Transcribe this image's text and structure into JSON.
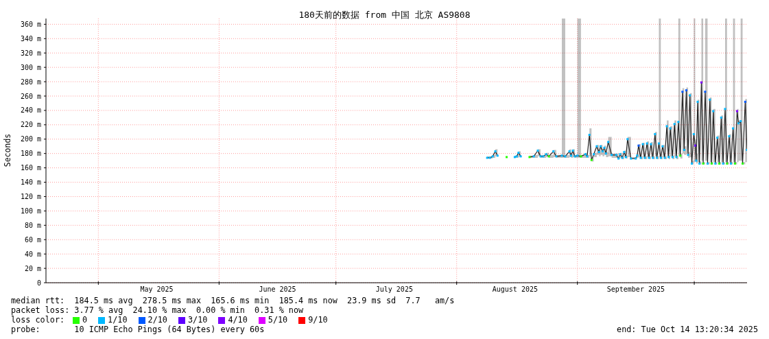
{
  "chart_data": {
    "type": "line",
    "title": "180天前的数据 from 中国 北京 AS9808",
    "ylabel": "Seconds",
    "legend_title": "loss color:",
    "annotations": [
      "median rtt:  184.5 ms avg  278.5 ms max  165.6 ms min  185.4 ms now  23.9 ms sd  7.7   am/s",
      "packet loss: 3.77 % avg  24.10 % max  0.00 % min  0.31 % now",
      "probe:       10 ICMP Echo Pings (64 Bytes) every 60s",
      "end: Tue Oct 14 13:20:34 2025"
    ],
    "xlim": [
      "2025-04-17T13:20",
      "2025-10-14T13:20"
    ],
    "xticks": [
      {
        "value": "2025-05-01",
        "label": null
      },
      {
        "value": "2025-05-16",
        "label": "May 2025"
      },
      {
        "value": "2025-06-01",
        "label": null
      },
      {
        "value": "2025-06-16",
        "label": "June 2025"
      },
      {
        "value": "2025-07-01",
        "label": null
      },
      {
        "value": "2025-07-16",
        "label": "July 2025"
      },
      {
        "value": "2025-08-01",
        "label": null
      },
      {
        "value": "2025-08-16",
        "label": "August 2025"
      },
      {
        "value": "2025-09-01",
        "label": null
      },
      {
        "value": "2025-09-16",
        "label": "September 2025"
      },
      {
        "value": "2025-10-01",
        "label": null
      }
    ],
    "ylim": [
      0,
      368
    ],
    "yticks": [
      0,
      {
        "value": 20,
        "label": "20 m"
      },
      {
        "value": 40,
        "label": "40 m"
      },
      {
        "value": 60,
        "label": "60 m"
      },
      {
        "value": 80,
        "label": "80 m"
      },
      {
        "value": 100,
        "label": "100 m"
      },
      {
        "value": 120,
        "label": "120 m"
      },
      {
        "value": 140,
        "label": "140 m"
      },
      {
        "value": 160,
        "label": "160 m"
      },
      {
        "value": 180,
        "label": "180 m"
      },
      {
        "value": 200,
        "label": "200 m"
      },
      {
        "value": 220,
        "label": "220 m"
      },
      {
        "value": 240,
        "label": "240 m"
      },
      {
        "value": 260,
        "label": "260 m"
      },
      {
        "value": 280,
        "label": "280 m"
      },
      {
        "value": 300,
        "label": "300 m"
      },
      {
        "value": 320,
        "label": "320 m"
      },
      {
        "value": 340,
        "label": "340 m"
      },
      {
        "value": 360,
        "label": "360 m"
      }
    ],
    "grid": true,
    "legend": "bottom",
    "marker": "square",
    "series": [
      {
        "color": "#222222",
        "marker": "none",
        "x": [
          "2025-08-08T20:00",
          "2025-08-09T13:00",
          "2025-08-10T06:00",
          "2025-08-10T22:00",
          "2025-08-11T12:00",
          "2025-08-12T12:00",
          "2025-08-15T22:00",
          "2025-08-16T10:00",
          "2025-08-16T21:00",
          "2025-08-17T11:00",
          "2025-08-18T12:00",
          "2025-08-19T17:00",
          "2025-08-20T19:00",
          "2025-08-21T20:00",
          "2025-08-22T13:00",
          "2025-08-23T06:00",
          "2025-08-23T23:00",
          "2025-08-24T16:00",
          "2025-08-25T20:00",
          "2025-08-26T14:00",
          "2025-08-28T00:00",
          "2025-08-28T21:00",
          "2025-08-29T23:00",
          "2025-08-30T09:00",
          "2025-08-30T20:00",
          "2025-08-31T08:00",
          "2025-09-01T00:00",
          "2025-09-01T22:00",
          "2025-09-03T01:00",
          "2025-09-03T12:00",
          "2025-09-04T02:00",
          "2025-09-04T15:00",
          "2025-09-05T05:00",
          "2025-09-05T23:00",
          "2025-09-06T13:00",
          "2025-09-06T23:00",
          "2025-09-07T11:00",
          "2025-09-07T22:00",
          "2025-09-08T08:00",
          "2025-09-08T22:00",
          "2025-09-09T19:00",
          "2025-09-10T23:00",
          "2025-09-11T13:00",
          "2025-09-11T23:00",
          "2025-09-12T12:00",
          "2025-09-13T00:00",
          "2025-09-13T11:00",
          "2025-09-13T21:00",
          "2025-09-14T18:00",
          "2025-09-15T23:00",
          "2025-09-16T08:00",
          "2025-09-16T17:00",
          "2025-09-17T06:00",
          "2025-09-17T19:00",
          "2025-09-18T07:00",
          "2025-09-18T21:00",
          "2025-09-19T09:00",
          "2025-09-19T21:00",
          "2025-09-20T09:00",
          "2025-09-20T22:00",
          "2025-09-21T10:00",
          "2025-09-21T22:00",
          "2025-09-22T10:00",
          "2025-09-22T21:00",
          "2025-09-23T10:00",
          "2025-09-23T23:00",
          "2025-09-24T10:00",
          "2025-09-24T20:00",
          "2025-09-25T10:00",
          "2025-09-25T22:00",
          "2025-09-26T10:00",
          "2025-09-26T22:00",
          "2025-09-27T10:00",
          "2025-09-27T23:00",
          "2025-09-28T10:00",
          "2025-09-28T23:00",
          "2025-09-29T10:00",
          "2025-09-29T21:00",
          "2025-09-30T09:00",
          "2025-09-30T21:00",
          "2025-10-01T06:00",
          "2025-10-01T12:00",
          "2025-10-01T21:00",
          "2025-10-02T08:00",
          "2025-10-02T20:00",
          "2025-10-03T07:00",
          "2025-10-03T19:00",
          "2025-10-04T10:00",
          "2025-10-05T00:00",
          "2025-10-05T11:00",
          "2025-10-05T21:00",
          "2025-10-06T10:00",
          "2025-10-06T22:00",
          "2025-10-07T10:00",
          "2025-10-07T22:00",
          "2025-10-08T10:00",
          "2025-10-08T22:00",
          "2025-10-09T10:00",
          "2025-10-09T23:00",
          "2025-10-10T10:00",
          "2025-10-10T23:00",
          "2025-10-11T11:00",
          "2025-10-12T00:00",
          "2025-10-12T09:00",
          "2025-10-12T22:00",
          "2025-10-13T10:00",
          "2025-10-14T02:00",
          "2025-10-14T13:00"
        ],
        "values": [
          174,
          174,
          176,
          183,
          177,
          null,
          175,
          176,
          181,
          176,
          null,
          175,
          176,
          184,
          176,
          176,
          179,
          176,
          183,
          176,
          177,
          176,
          183,
          177,
          184,
          176,
          177,
          176,
          179,
          176,
          206,
          171,
          179,
          190,
          182,
          190,
          183,
          188,
          180,
          196,
          178,
          178,
          173,
          179,
          174,
          182,
          175,
          200,
          173,
          173,
          177,
          191,
          174,
          193,
          174,
          194,
          174,
          193,
          174,
          207,
          174,
          194,
          174,
          190,
          174,
          218,
          175,
          215,
          175,
          221,
          175,
          224,
          177,
          266,
          185,
          268,
          178,
          261,
          166,
          207,
          191,
          170,
          252,
          166,
          279,
          166,
          266,
          166,
          255,
          166,
          239,
          166,
          202,
          166,
          230,
          166,
          242,
          166,
          204,
          166,
          215,
          166,
          239,
          222,
          225,
          166,
          252,
          185
        ],
        "lower": [
          173,
          173,
          174,
          176,
          175,
          null,
          174,
          174,
          175,
          174,
          null,
          174,
          174,
          176,
          174,
          174,
          175,
          174,
          175,
          174,
          174,
          174,
          175,
          174,
          175,
          174,
          174,
          174,
          174,
          174,
          176,
          169,
          175,
          178,
          176,
          178,
          176,
          178,
          175,
          176,
          174,
          174,
          172,
          174,
          172,
          175,
          173,
          175,
          172,
          172,
          174,
          175,
          172,
          175,
          172,
          175,
          172,
          175,
          172,
          176,
          172,
          175,
          172,
          175,
          172,
          176,
          172,
          176,
          172,
          176,
          172,
          177,
          173,
          180,
          178,
          180,
          174,
          175,
          165,
          168,
          170,
          166,
          168,
          165,
          170,
          165,
          170,
          165,
          168,
          165,
          168,
          165,
          168,
          165,
          168,
          165,
          168,
          165,
          168,
          165,
          168,
          165,
          168,
          170,
          170,
          165,
          168,
          175
        ],
        "upper": [
          176,
          176,
          178,
          186,
          184,
          null,
          177,
          178,
          183,
          178,
          null,
          177,
          178,
          186,
          178,
          178,
          181,
          178,
          185,
          178,
          368,
          178,
          186,
          179,
          186,
          178,
          368,
          178,
          181,
          178,
          215,
          175,
          181,
          192,
          184,
          192,
          185,
          191,
          182,
          203,
          180,
          180,
          175,
          181,
          176,
          184,
          177,
          203,
          175,
          175,
          179,
          193,
          176,
          195,
          176,
          197,
          176,
          196,
          176,
          210,
          176,
          368,
          176,
          192,
          176,
          226,
          177,
          218,
          177,
          226,
          177,
          368,
          180,
          271,
          190,
          272,
          182,
          264,
          170,
          368,
          200,
          180,
          255,
          169,
          368,
          168,
          368,
          168,
          258,
          168,
          242,
          168,
          205,
          168,
          233,
          168,
          368,
          168,
          207,
          168,
          368,
          168,
          242,
          226,
          368,
          168,
          256,
          190
        ]
      },
      {
        "name": "0",
        "type": "scatter",
        "color": "#26ff00",
        "x": [
          "2025-08-13T20:00",
          "2025-08-19T17:00",
          "2025-08-24T16:00",
          "2025-09-01T22:00",
          "2025-09-04T15:00",
          "2025-09-27T10:00",
          "2025-10-03T07:00",
          "2025-10-05T11:00",
          "2025-10-07T10:00",
          "2025-10-09T10:00",
          "2025-10-11T11:00",
          "2025-10-13T10:00"
        ],
        "values": [
          175,
          175,
          176,
          176,
          171,
          177,
          166,
          166,
          166,
          166,
          166,
          166
        ]
      },
      {
        "name": "1/10",
        "type": "scatter",
        "color": "#00b8ff",
        "x": [
          "2025-08-08T20:00",
          "2025-08-09T13:00",
          "2025-08-10T06:00",
          "2025-08-10T22:00",
          "2025-08-11T12:00",
          "2025-08-15T22:00",
          "2025-08-16T10:00",
          "2025-08-16T21:00",
          "2025-08-17T11:00",
          "2025-08-20T19:00",
          "2025-08-21T20:00",
          "2025-08-22T13:00",
          "2025-08-23T06:00",
          "2025-08-23T23:00",
          "2025-08-25T20:00",
          "2025-08-26T14:00",
          "2025-08-28T00:00",
          "2025-08-28T21:00",
          "2025-08-29T23:00",
          "2025-08-30T09:00",
          "2025-08-30T20:00",
          "2025-08-31T08:00",
          "2025-09-01T00:00",
          "2025-09-03T01:00",
          "2025-09-03T12:00",
          "2025-09-04T02:00",
          "2025-09-05T05:00",
          "2025-09-05T23:00",
          "2025-09-06T13:00",
          "2025-09-06T23:00",
          "2025-09-07T11:00",
          "2025-09-07T22:00",
          "2025-09-08T08:00",
          "2025-09-08T22:00",
          "2025-09-09T19:00",
          "2025-09-10T23:00",
          "2025-09-11T13:00",
          "2025-09-11T23:00",
          "2025-09-12T12:00",
          "2025-09-13T00:00",
          "2025-09-13T11:00",
          "2025-09-13T21:00",
          "2025-09-14T18:00",
          "2025-09-15T23:00",
          "2025-09-16T08:00",
          "2025-09-17T06:00",
          "2025-09-17T19:00",
          "2025-09-18T07:00",
          "2025-09-18T21:00",
          "2025-09-19T09:00",
          "2025-09-19T21:00",
          "2025-09-20T09:00",
          "2025-09-20T22:00",
          "2025-09-21T10:00",
          "2025-09-21T22:00",
          "2025-09-22T10:00",
          "2025-09-22T21:00",
          "2025-09-23T10:00",
          "2025-09-23T23:00",
          "2025-09-24T10:00",
          "2025-09-24T20:00",
          "2025-09-25T10:00",
          "2025-09-25T22:00",
          "2025-09-26T10:00",
          "2025-09-26T22:00",
          "2025-09-28T10:00",
          "2025-09-29T10:00",
          "2025-09-29T21:00",
          "2025-09-30T09:00",
          "2025-09-30T21:00",
          "2025-10-01T12:00",
          "2025-10-01T21:00",
          "2025-10-02T08:00",
          "2025-10-04T10:00",
          "2025-10-05T00:00",
          "2025-10-05T21:00",
          "2025-10-06T10:00",
          "2025-10-06T22:00",
          "2025-10-07T22:00",
          "2025-10-08T10:00",
          "2025-10-08T22:00",
          "2025-10-09T23:00",
          "2025-10-10T10:00",
          "2025-10-10T23:00",
          "2025-10-12T09:00",
          "2025-10-12T22:00",
          "2025-10-14T13:00"
        ],
        "values": [
          174,
          174,
          176,
          183,
          177,
          175,
          176,
          181,
          176,
          176,
          184,
          176,
          176,
          179,
          183,
          176,
          177,
          176,
          183,
          177,
          184,
          176,
          177,
          179,
          176,
          206,
          179,
          190,
          182,
          190,
          183,
          188,
          180,
          196,
          178,
          178,
          173,
          179,
          174,
          182,
          175,
          200,
          173,
          173,
          177,
          174,
          193,
          174,
          194,
          174,
          193,
          174,
          207,
          174,
          194,
          174,
          190,
          174,
          218,
          175,
          215,
          175,
          221,
          175,
          224,
          185,
          178,
          261,
          166,
          207,
          170,
          252,
          166,
          166,
          255,
          239,
          166,
          202,
          230,
          166,
          242,
          204,
          166,
          215,
          222,
          225,
          185
        ]
      },
      {
        "name": "2/10",
        "type": "scatter",
        "color": "#0059ff",
        "x": [
          "2025-09-16T17:00",
          "2025-09-27T23:00",
          "2025-09-28T23:00",
          "2025-10-03T19:00",
          "2025-10-14T02:00"
        ],
        "values": [
          191,
          266,
          268,
          266,
          252
        ]
      },
      {
        "name": "3/10",
        "type": "scatter",
        "color": "#5e00ff",
        "x": [
          "2025-10-01T06:00"
        ],
        "values": [
          191
        ]
      },
      {
        "name": "4/10",
        "type": "scatter",
        "color": "#7e00ff",
        "x": [
          "2025-10-02T20:00",
          "2025-10-12T00:00"
        ],
        "values": [
          279,
          239
        ]
      },
      {
        "name": "5/10",
        "type": "scatter",
        "color": "#dd00ff"
      },
      {
        "name": "9/10",
        "type": "scatter",
        "color": "#ff0000"
      }
    ]
  }
}
